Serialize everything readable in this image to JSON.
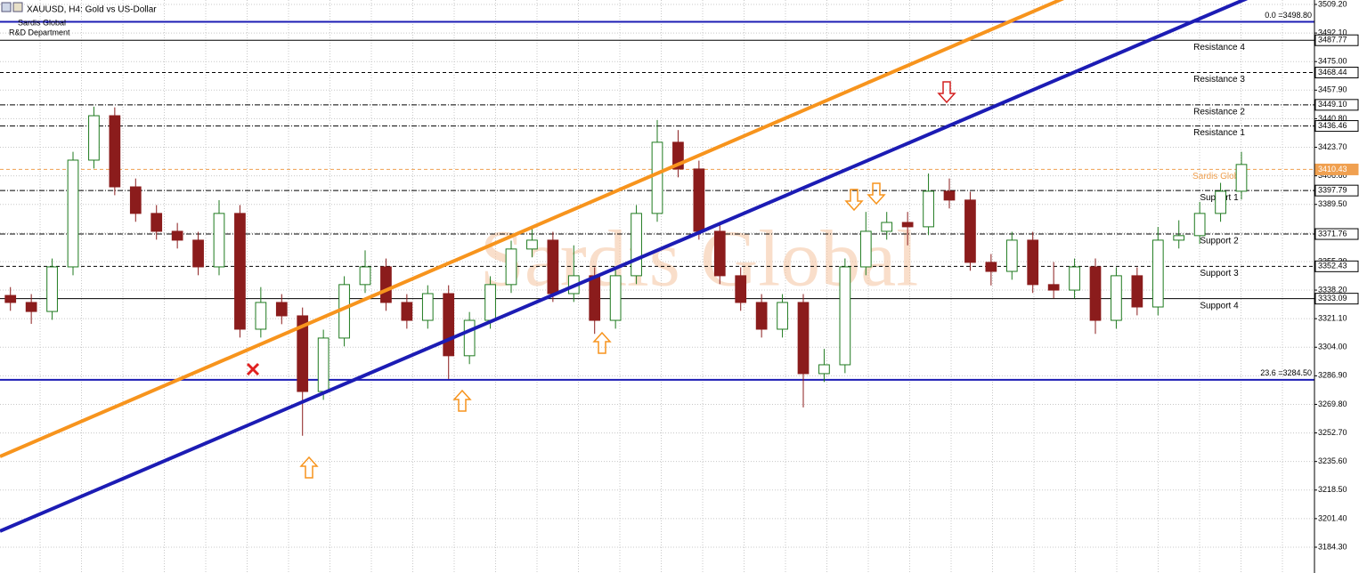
{
  "chart_data": {
    "type": "candlestick",
    "title": "XAUUSD, H4: Gold vs US-Dollar",
    "subtitle": "Sardis Global",
    "department": "R&D Department",
    "watermark": "Sardis Global",
    "up_color": "#1f7a1f",
    "down_color": "#8b1c1c",
    "grid": true,
    "xlim": [
      0,
      63
    ],
    "ylim": [
      3168.85,
      3511.86
    ],
    "yticks": [
      {
        "value": 3509.2,
        "label": "3509.20"
      },
      {
        "value": 3492.1,
        "label": "3492.10"
      },
      {
        "value": 3475.0,
        "label": "3475.00"
      },
      {
        "value": 3457.9,
        "label": "3457.90"
      },
      {
        "value": 3440.8,
        "label": "3440.80"
      },
      {
        "value": 3423.7,
        "label": "3423.70"
      },
      {
        "value": 3406.6,
        "label": "3406.60"
      },
      {
        "value": 3389.5,
        "label": "3389.50"
      },
      {
        "value": 3372.4,
        "label": "3372.40"
      },
      {
        "value": 3355.3,
        "label": "3355.30"
      },
      {
        "value": 3338.2,
        "label": "3338.20"
      },
      {
        "value": 3321.1,
        "label": "3321.10"
      },
      {
        "value": 3304.0,
        "label": "3304.00"
      },
      {
        "value": 3286.9,
        "label": "3286.90"
      },
      {
        "value": 3269.8,
        "label": "3269.80"
      },
      {
        "value": 3252.7,
        "label": "3252.70"
      },
      {
        "value": 3235.6,
        "label": "3235.60"
      },
      {
        "value": 3218.5,
        "label": "3218.50"
      },
      {
        "value": 3201.4,
        "label": "3201.40"
      },
      {
        "value": 3184.3,
        "label": "3184.30"
      }
    ],
    "open": [
      3335.0,
      3330.8,
      3325.4,
      3352.1,
      3416.0,
      3442.6,
      3400.0,
      3384.1,
      3373.4,
      3368.1,
      3352.1,
      3384.1,
      3314.8,
      3330.8,
      3322.8,
      3277.5,
      3309.5,
      3341.5,
      3352.1,
      3330.8,
      3320.1,
      3336.1,
      3298.9,
      3320.1,
      3341.5,
      3362.8,
      3368.1,
      3336.1,
      3346.8,
      3320.1,
      3346.8,
      3384.1,
      3426.7,
      3410.7,
      3373.4,
      3346.8,
      3330.8,
      3314.8,
      3330.8,
      3288.2,
      3293.5,
      3352.1,
      3373.4,
      3378.7,
      3376.1,
      3397.4,
      3392.1,
      3354.8,
      3349.4,
      3368.1,
      3341.5,
      3338.2,
      3352.1,
      3320.1,
      3346.8,
      3328.1,
      3368.1,
      3370.8,
      3384.1,
      3397.4
    ],
    "high": [
      3340.0,
      3335.8,
      3357.1,
      3421.0,
      3448.0,
      3447.6,
      3405.0,
      3389.1,
      3378.4,
      3373.1,
      3392.0,
      3389.1,
      3340.0,
      3335.8,
      3327.8,
      3314.5,
      3346.5,
      3362.0,
      3357.1,
      3335.8,
      3341.1,
      3341.1,
      3325.1,
      3346.5,
      3367.8,
      3376.0,
      3373.1,
      3365.0,
      3351.8,
      3351.8,
      3389.1,
      3440.0,
      3434.0,
      3415.7,
      3378.4,
      3351.8,
      3335.8,
      3335.8,
      3335.8,
      3303.0,
      3357.1,
      3385.0,
      3385.0,
      3385.0,
      3408.0,
      3405.0,
      3397.1,
      3359.8,
      3373.1,
      3373.1,
      3355.0,
      3357.1,
      3357.1,
      3351.8,
      3351.8,
      3376.0,
      3380.0,
      3391.0,
      3402.4,
      3421.0
    ],
    "low": [
      3325.8,
      3318.0,
      3320.4,
      3347.1,
      3411.0,
      3395.0,
      3379.1,
      3368.4,
      3363.1,
      3347.1,
      3347.1,
      3309.8,
      3309.8,
      3317.8,
      3251.0,
      3272.5,
      3304.5,
      3336.5,
      3325.8,
      3315.1,
      3315.1,
      3285.0,
      3293.9,
      3315.1,
      3336.5,
      3357.8,
      3331.1,
      3331.1,
      3312.0,
      3315.1,
      3341.8,
      3379.1,
      3405.7,
      3368.4,
      3341.8,
      3325.8,
      3309.8,
      3309.8,
      3268.0,
      3283.2,
      3288.5,
      3347.1,
      3368.4,
      3365.0,
      3371.1,
      3387.1,
      3349.8,
      3341.0,
      3344.4,
      3336.5,
      3333.2,
      3333.2,
      3312.0,
      3315.1,
      3323.1,
      3323.1,
      3363.1,
      3365.8,
      3379.1,
      3392.4
    ],
    "close": [
      3330.8,
      3325.4,
      3352.1,
      3416.0,
      3442.6,
      3400.0,
      3384.1,
      3373.4,
      3368.1,
      3352.1,
      3384.1,
      3314.8,
      3330.8,
      3322.8,
      3277.5,
      3309.5,
      3341.5,
      3352.1,
      3330.8,
      3320.1,
      3336.1,
      3298.9,
      3320.1,
      3341.5,
      3362.8,
      3368.1,
      3336.1,
      3346.8,
      3320.1,
      3346.8,
      3384.1,
      3426.7,
      3410.7,
      3373.4,
      3346.8,
      3330.8,
      3314.8,
      3330.8,
      3288.2,
      3293.5,
      3352.1,
      3373.4,
      3378.7,
      3376.1,
      3397.4,
      3392.1,
      3354.8,
      3349.4,
      3368.1,
      3341.5,
      3338.2,
      3352.1,
      3320.1,
      3346.8,
      3328.1,
      3368.1,
      3370.8,
      3384.1,
      3397.4,
      3413.4
    ],
    "levels": [
      {
        "name": "0.0 =3498.80",
        "value": 3498.8,
        "color": "#1c1cb4",
        "style": "solid",
        "kind": "fib"
      },
      {
        "name": "Resistance 4",
        "value": 3487.77,
        "color": "#000000",
        "style": "solid",
        "kind": "sr"
      },
      {
        "name": "Resistance 3",
        "value": 3468.44,
        "color": "#000000",
        "style": "dashed",
        "kind": "sr"
      },
      {
        "name": "Resistance 2",
        "value": 3449.1,
        "value_label": "3449.10",
        "color": "#000000",
        "style": "dashdot",
        "kind": "sr"
      },
      {
        "name": "Resistance 1",
        "value": 3436.46,
        "color": "#000000",
        "style": "dashdot",
        "kind": "sr"
      },
      {
        "name": "Sardis Global",
        "value": 3410.43,
        "color": "#f0a050",
        "style": "dashed",
        "kind": "sr"
      },
      {
        "name": "Support 1",
        "value": 3397.79,
        "color": "#000000",
        "style": "dashdot",
        "kind": "sr"
      },
      {
        "name": "Support 2",
        "value": 3371.76,
        "color": "#000000",
        "style": "dashdot",
        "kind": "sr"
      },
      {
        "name": "Support 3",
        "value": 3352.43,
        "color": "#000000",
        "style": "dashed",
        "kind": "sr"
      },
      {
        "name": "Support 4",
        "value": 3333.09,
        "color": "#000000",
        "style": "solid",
        "kind": "sr"
      },
      {
        "name": "23.6 =3284.50",
        "value": 3284.5,
        "color": "#1c1cb4",
        "style": "solid",
        "kind": "fib"
      }
    ],
    "trendlines": [
      {
        "color": "#f7941d",
        "points": [
          [
            0,
            3238.6
          ],
          [
            50.8,
            3511.9
          ]
        ]
      },
      {
        "color": "#1c1cb4",
        "points": [
          [
            0,
            3193.9
          ],
          [
            59.6,
            3511.9
          ]
        ]
      }
    ]
  }
}
